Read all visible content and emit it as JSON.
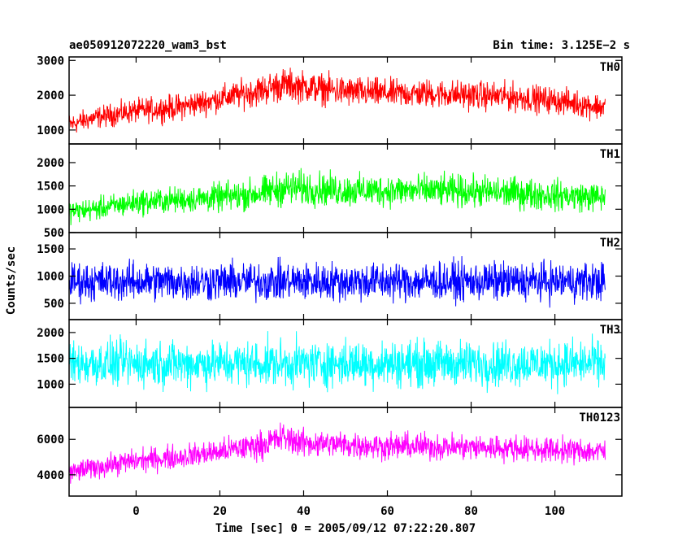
{
  "header": {
    "title": "ae050912072220_wam3_bst",
    "bin_time": "Bin time: 3.125E−2 s"
  },
  "xlabel": "Time [sec] 0 = 2005/09/12 07:22:20.807",
  "ylabel": "Counts/sec",
  "chart_data": [
    {
      "type": "line",
      "panel": "TH0",
      "label": "TH0",
      "color": "#ff0000",
      "xlim": [
        -16,
        116
      ],
      "ylim": [
        600,
        3100
      ],
      "yticks": [
        1000,
        2000,
        3000
      ],
      "yticklabels": [
        "1000",
        "2000",
        "3000"
      ],
      "x": [
        -16,
        -10,
        0,
        10,
        20,
        30,
        35,
        40,
        50,
        60,
        70,
        80,
        90,
        100,
        112
      ],
      "mean": [
        1150,
        1350,
        1550,
        1650,
        1900,
        2150,
        2300,
        2250,
        2100,
        2050,
        2050,
        2000,
        1950,
        1850,
        1650
      ],
      "spread": [
        450,
        450,
        500,
        550,
        550,
        650,
        700,
        650,
        650,
        600,
        600,
        600,
        600,
        550,
        550
      ]
    },
    {
      "type": "line",
      "panel": "TH1",
      "label": "TH1",
      "color": "#00ff00",
      "xlim": [
        -16,
        116
      ],
      "ylim": [
        500,
        2400
      ],
      "yticks": [
        500,
        1000,
        1500,
        2000
      ],
      "yticklabels": [
        "500",
        "1000",
        "1500",
        "2000"
      ],
      "x": [
        -16,
        -10,
        0,
        10,
        20,
        30,
        35,
        40,
        50,
        60,
        70,
        80,
        90,
        100,
        112
      ],
      "mean": [
        950,
        1000,
        1150,
        1200,
        1250,
        1350,
        1450,
        1450,
        1400,
        1400,
        1400,
        1380,
        1350,
        1300,
        1250
      ],
      "spread": [
        350,
        350,
        400,
        400,
        450,
        500,
        550,
        550,
        500,
        500,
        500,
        500,
        500,
        480,
        450
      ]
    },
    {
      "type": "line",
      "panel": "TH2",
      "label": "TH2",
      "color": "#0000ff",
      "xlim": [
        -16,
        116
      ],
      "ylim": [
        200,
        1800
      ],
      "yticks": [
        500,
        1000,
        1500
      ],
      "yticklabels": [
        "500",
        "1000",
        "1500"
      ],
      "x": [
        -16,
        0,
        20,
        40,
        60,
        80,
        100,
        112
      ],
      "mean": [
        900,
        900,
        900,
        900,
        900,
        900,
        900,
        900
      ],
      "spread": [
        520,
        520,
        520,
        520,
        520,
        520,
        520,
        520
      ]
    },
    {
      "type": "line",
      "panel": "TH3",
      "label": "TH3",
      "color": "#00ffff",
      "xlim": [
        -16,
        116
      ],
      "ylim": [
        550,
        2250
      ],
      "yticks": [
        1000,
        1500,
        2000
      ],
      "yticklabels": [
        "1000",
        "1500",
        "2000"
      ],
      "x": [
        -16,
        0,
        20,
        40,
        60,
        80,
        100,
        112
      ],
      "mean": [
        1400,
        1400,
        1400,
        1400,
        1400,
        1400,
        1400,
        1400
      ],
      "spread": [
        650,
        650,
        650,
        650,
        650,
        650,
        650,
        650
      ]
    },
    {
      "type": "line",
      "panel": "TH0123",
      "label": "TH0123",
      "color": "#ff00ff",
      "xlim": [
        -16,
        116
      ],
      "ylim": [
        2800,
        7800
      ],
      "yticks": [
        4000,
        6000
      ],
      "yticklabels": [
        "4000",
        "6000"
      ],
      "x": [
        -16,
        -10,
        0,
        10,
        20,
        30,
        35,
        40,
        50,
        60,
        70,
        80,
        90,
        100,
        112
      ],
      "mean": [
        4100,
        4400,
        4800,
        5000,
        5300,
        5700,
        6100,
        5800,
        5700,
        5600,
        5600,
        5550,
        5500,
        5400,
        5300
      ],
      "spread": [
        900,
        900,
        950,
        1000,
        1050,
        1150,
        1250,
        1150,
        1100,
        1100,
        1100,
        1100,
        1050,
        1050,
        1000
      ]
    }
  ],
  "xaxis": {
    "ticks": [
      0,
      20,
      40,
      60,
      80,
      100
    ],
    "ticklabels": [
      "0",
      "20",
      "40",
      "60",
      "80",
      "100"
    ]
  }
}
